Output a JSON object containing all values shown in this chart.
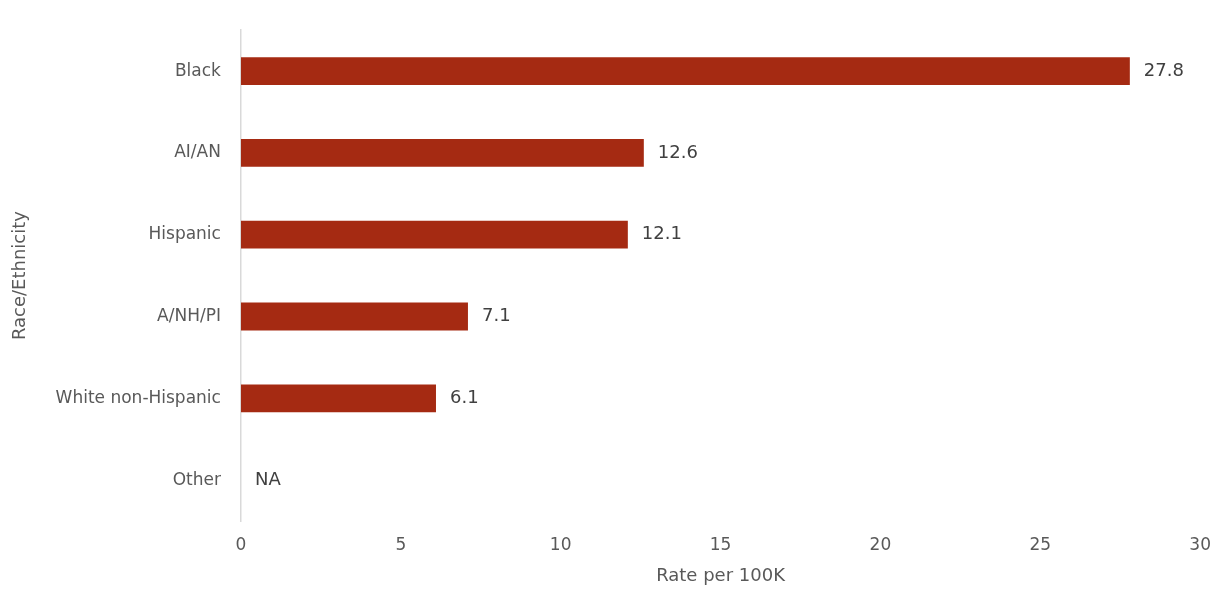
{
  "chart_data": {
    "type": "bar",
    "orientation": "horizontal",
    "xlabel": "Rate per 100K",
    "ylabel": "Race/Ethnicity",
    "categories": [
      "Black",
      "AI/AN",
      "Hispanic",
      "A/NH/PI",
      "White non-Hispanic",
      "Other"
    ],
    "values": [
      27.8,
      12.6,
      12.1,
      7.1,
      6.1,
      null
    ],
    "value_labels": [
      "27.8",
      "12.6",
      "12.1",
      "7.1",
      "6.1",
      "NA"
    ],
    "color": "#a52a12",
    "xlim": [
      0,
      30
    ],
    "xticks": [
      0,
      5,
      10,
      15,
      20,
      25,
      30
    ],
    "grid": false,
    "legend": false
  }
}
